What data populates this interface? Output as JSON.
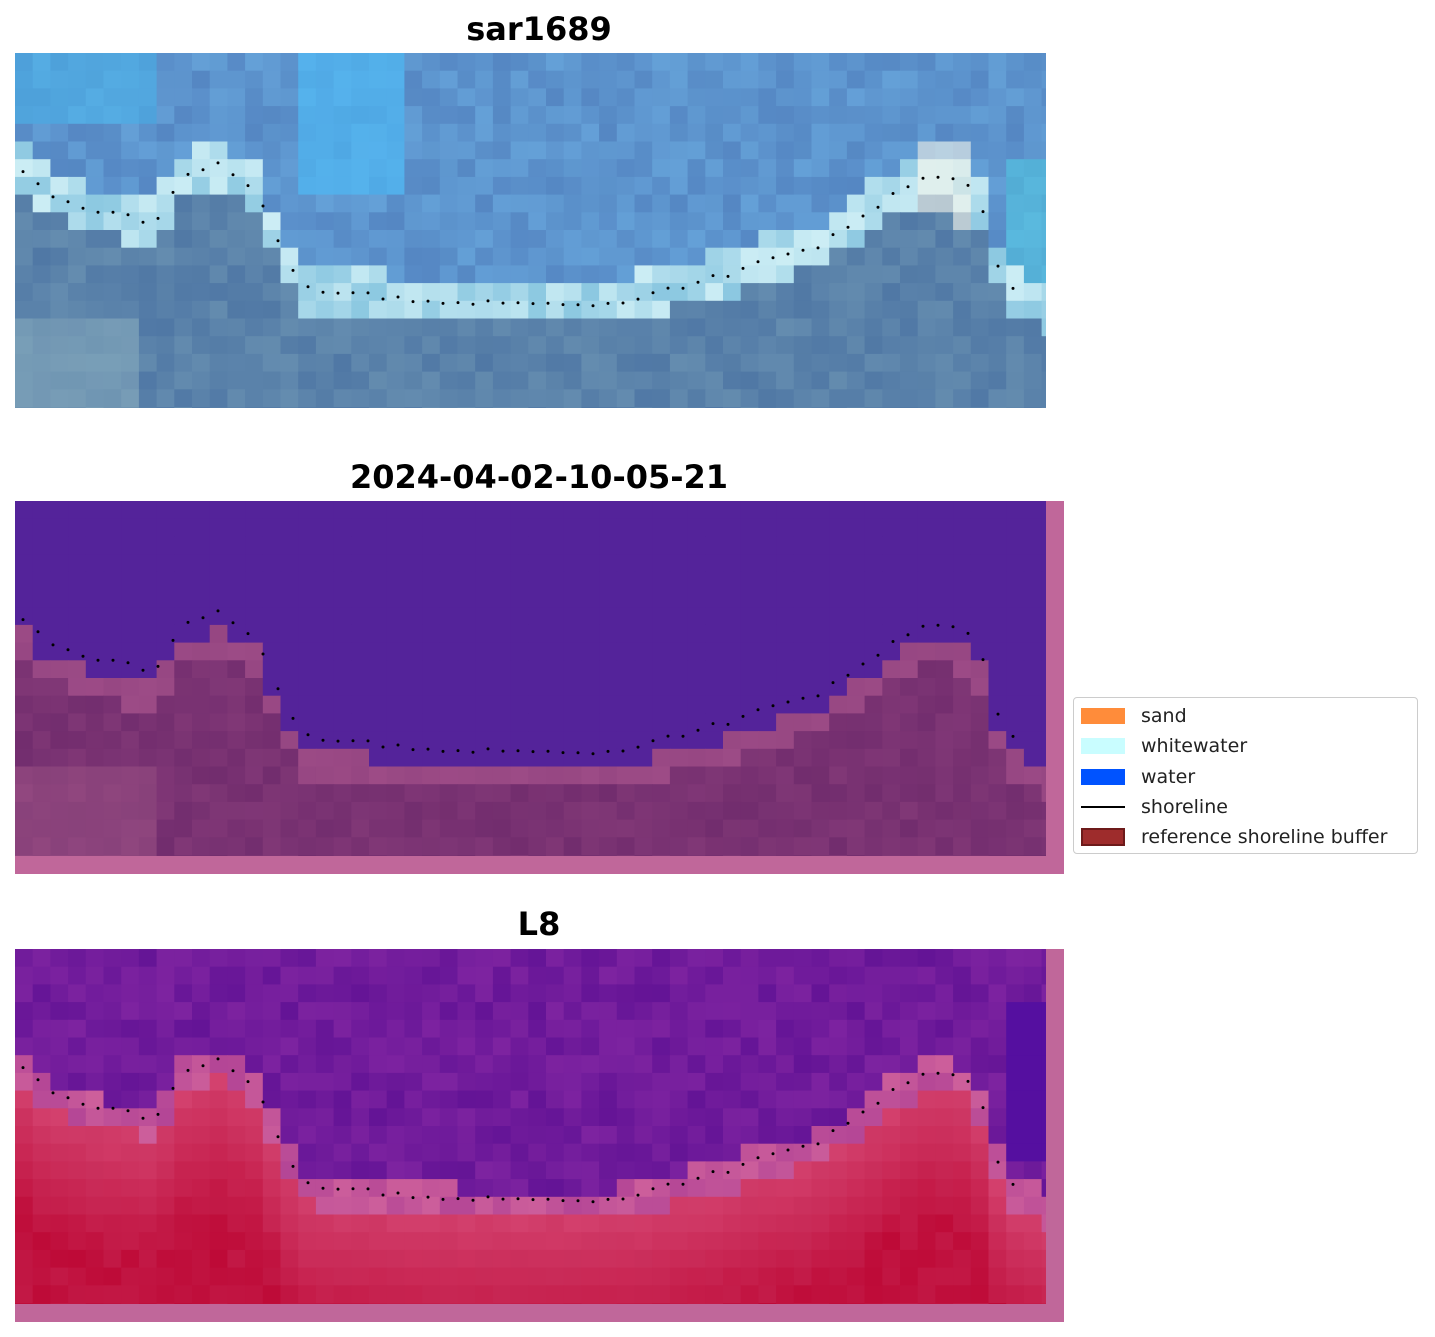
{
  "panels": [
    {
      "title": "sar1689",
      "kind": "rgb"
    },
    {
      "title": "2024-04-02-10-05-21",
      "kind": "classified"
    },
    {
      "title": "L8",
      "kind": "index"
    }
  ],
  "legend": {
    "items": [
      {
        "label": "sand",
        "color": "#ff8c3a",
        "type": "patch"
      },
      {
        "label": "whitewater",
        "color": "#c9fdff",
        "type": "patch"
      },
      {
        "label": "water",
        "color": "#0053ff",
        "type": "patch"
      },
      {
        "label": "shoreline",
        "color": "#000000",
        "type": "line"
      },
      {
        "label": "reference shoreline buffer",
        "color": "#9e2c2c",
        "edge": "#6d1a1a",
        "type": "patch"
      }
    ]
  }
}
